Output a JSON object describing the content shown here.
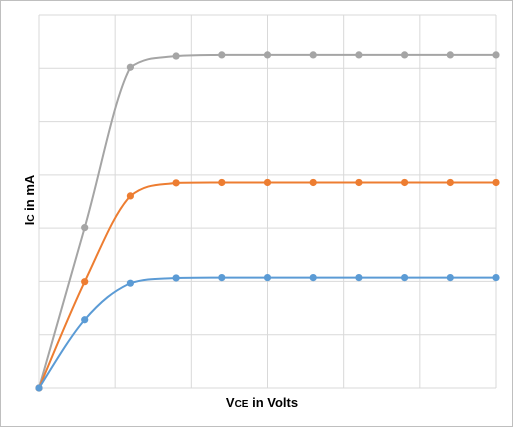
{
  "chart_data": {
    "type": "line",
    "title": "",
    "xlabel": {
      "main": "V",
      "subscript": "CE",
      "suffix": " in Volts"
    },
    "ylabel": {
      "main": "I",
      "subscript": "C",
      "suffix": " in mA"
    },
    "xlim": [
      0,
      10
    ],
    "ylim": [
      0,
      100
    ],
    "grid": true,
    "legend": "none",
    "series": [
      {
        "color": "#a5a5a5",
        "x": [
          0,
          1,
          2,
          3,
          4,
          5,
          6,
          7,
          8,
          9,
          10
        ],
        "y": [
          0,
          43,
          86,
          89,
          89.3,
          89.3,
          89.3,
          89.3,
          89.3,
          89.3,
          89.3
        ]
      },
      {
        "color": "#ed7d31",
        "x": [
          0,
          1,
          2,
          3,
          4,
          5,
          6,
          7,
          8,
          9,
          10
        ],
        "y": [
          0,
          28.5,
          51.5,
          55,
          55.1,
          55.1,
          55.1,
          55.1,
          55.1,
          55.1,
          55.1
        ]
      },
      {
        "color": "#5b9bd5",
        "x": [
          0,
          1,
          2,
          3,
          4,
          5,
          6,
          7,
          8,
          9,
          10
        ],
        "y": [
          0,
          18.3,
          28.1,
          29.5,
          29.6,
          29.6,
          29.6,
          29.6,
          29.6,
          29.6,
          29.6
        ]
      }
    ]
  }
}
